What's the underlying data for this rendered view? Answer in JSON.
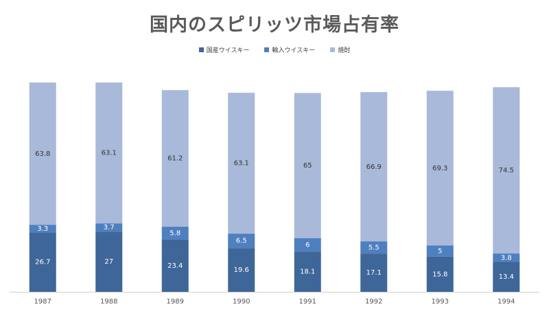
{
  "chart_data": {
    "type": "bar",
    "stacked": true,
    "title": "国内のスピリッツ市場占有率",
    "categories": [
      "1987",
      "1988",
      "1989",
      "1990",
      "1991",
      "1992",
      "1993",
      "1994"
    ],
    "series": [
      {
        "name": "国産ウイスキー",
        "color": "#3f6699",
        "label_color": "#ffffff",
        "values": [
          26.7,
          27,
          23.4,
          19.6,
          18.1,
          17.1,
          15.8,
          13.4
        ]
      },
      {
        "name": "輸入ウイスキー",
        "color": "#4e7fbf",
        "label_color": "#ffffff",
        "values": [
          3.3,
          3.7,
          5.8,
          6.5,
          6,
          5.5,
          5,
          3.8
        ]
      },
      {
        "name": "焼酎",
        "color": "#a9b9d9",
        "label_color": "#333333",
        "values": [
          63.8,
          63.1,
          61.2,
          63.1,
          65,
          66.9,
          69.3,
          74.5
        ]
      }
    ],
    "xlabel": "",
    "ylabel": "",
    "grid": false,
    "legend_position": "top-center"
  }
}
